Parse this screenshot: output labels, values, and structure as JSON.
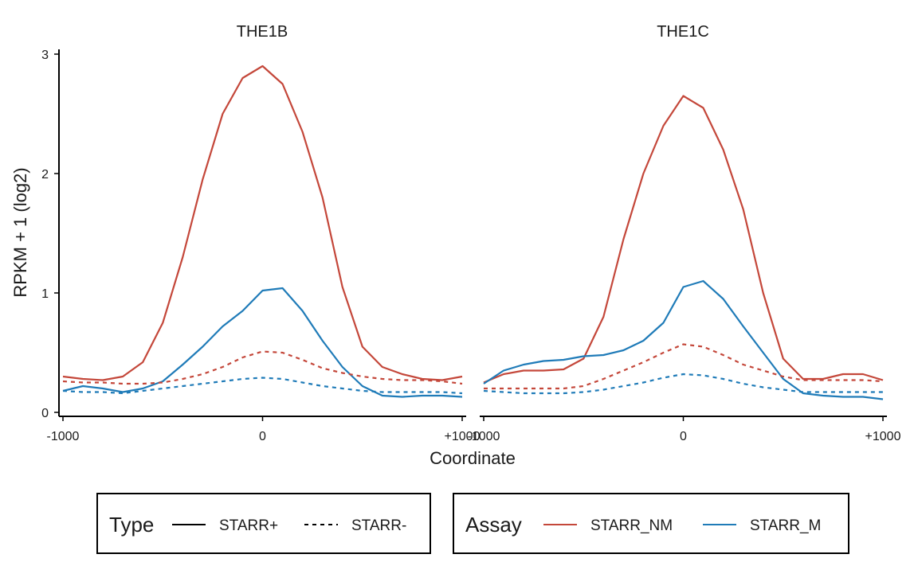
{
  "chart_data": {
    "type": "line",
    "xlabel": "Coordinate",
    "ylabel": "RPKM + 1 (log2)",
    "xlim": [
      -1000,
      1000
    ],
    "ylim": [
      0,
      3
    ],
    "x_ticks": [
      -1000,
      0,
      1000
    ],
    "x_tick_labels": [
      "-1000",
      "0",
      "+1000"
    ],
    "y_ticks": [
      0,
      1,
      2,
      3
    ],
    "y_tick_labels": [
      "0",
      "1",
      "2",
      "3"
    ],
    "grid": false,
    "colors": {
      "STARR_NM": "#C4473A",
      "STARR_M": "#1F7BB8"
    },
    "panels": [
      {
        "title": "THE1B",
        "series": [
          {
            "assay": "STARR_NM",
            "type": "STARR+",
            "x": [
              -1000,
              -900,
              -800,
              -700,
              -600,
              -500,
              -400,
              -300,
              -200,
              -100,
              0,
              100,
              200,
              300,
              400,
              500,
              600,
              700,
              800,
              900,
              1000
            ],
            "y": [
              0.3,
              0.28,
              0.27,
              0.3,
              0.42,
              0.75,
              1.3,
              1.95,
              2.5,
              2.8,
              2.9,
              2.75,
              2.35,
              1.8,
              1.05,
              0.55,
              0.38,
              0.32,
              0.28,
              0.27,
              0.3
            ]
          },
          {
            "assay": "STARR_M",
            "type": "STARR+",
            "x": [
              -1000,
              -900,
              -800,
              -700,
              -600,
              -500,
              -400,
              -300,
              -200,
              -100,
              0,
              100,
              200,
              300,
              400,
              500,
              600,
              700,
              800,
              900,
              1000
            ],
            "y": [
              0.18,
              0.22,
              0.2,
              0.17,
              0.2,
              0.26,
              0.4,
              0.55,
              0.72,
              0.85,
              1.02,
              1.04,
              0.85,
              0.6,
              0.38,
              0.22,
              0.14,
              0.13,
              0.14,
              0.14,
              0.13
            ]
          },
          {
            "assay": "STARR_NM",
            "type": "STARR-",
            "x": [
              -1000,
              -900,
              -800,
              -700,
              -600,
              -500,
              -400,
              -300,
              -200,
              -100,
              0,
              100,
              200,
              300,
              400,
              500,
              600,
              700,
              800,
              900,
              1000
            ],
            "y": [
              0.26,
              0.25,
              0.25,
              0.24,
              0.24,
              0.25,
              0.28,
              0.32,
              0.38,
              0.46,
              0.51,
              0.5,
              0.44,
              0.37,
              0.33,
              0.3,
              0.28,
              0.27,
              0.27,
              0.26,
              0.24
            ]
          },
          {
            "assay": "STARR_M",
            "type": "STARR-",
            "x": [
              -1000,
              -900,
              -800,
              -700,
              -600,
              -500,
              -400,
              -300,
              -200,
              -100,
              0,
              100,
              200,
              300,
              400,
              500,
              600,
              700,
              800,
              900,
              1000
            ],
            "y": [
              0.18,
              0.17,
              0.17,
              0.16,
              0.18,
              0.2,
              0.22,
              0.24,
              0.26,
              0.28,
              0.29,
              0.28,
              0.25,
              0.22,
              0.2,
              0.18,
              0.17,
              0.17,
              0.17,
              0.17,
              0.16
            ]
          }
        ]
      },
      {
        "title": "THE1C",
        "series": [
          {
            "assay": "STARR_NM",
            "type": "STARR+",
            "x": [
              -1000,
              -900,
              -800,
              -700,
              -600,
              -500,
              -400,
              -300,
              -200,
              -100,
              0,
              100,
              200,
              300,
              400,
              500,
              600,
              700,
              800,
              900,
              1000
            ],
            "y": [
              0.25,
              0.32,
              0.35,
              0.35,
              0.36,
              0.45,
              0.8,
              1.45,
              2.0,
              2.4,
              2.65,
              2.55,
              2.2,
              1.7,
              1.0,
              0.45,
              0.28,
              0.28,
              0.32,
              0.32,
              0.27
            ]
          },
          {
            "assay": "STARR_M",
            "type": "STARR+",
            "x": [
              -1000,
              -900,
              -800,
              -700,
              -600,
              -500,
              -400,
              -300,
              -200,
              -100,
              0,
              100,
              200,
              300,
              400,
              500,
              600,
              700,
              800,
              900,
              1000
            ],
            "y": [
              0.24,
              0.35,
              0.4,
              0.43,
              0.44,
              0.47,
              0.48,
              0.52,
              0.6,
              0.75,
              1.05,
              1.1,
              0.95,
              0.72,
              0.5,
              0.28,
              0.16,
              0.14,
              0.13,
              0.13,
              0.11
            ]
          },
          {
            "assay": "STARR_NM",
            "type": "STARR-",
            "x": [
              -1000,
              -900,
              -800,
              -700,
              -600,
              -500,
              -400,
              -300,
              -200,
              -100,
              0,
              100,
              200,
              300,
              400,
              500,
              600,
              700,
              800,
              900,
              1000
            ],
            "y": [
              0.2,
              0.2,
              0.2,
              0.2,
              0.2,
              0.22,
              0.28,
              0.35,
              0.42,
              0.5,
              0.57,
              0.55,
              0.48,
              0.4,
              0.35,
              0.3,
              0.27,
              0.27,
              0.27,
              0.27,
              0.26
            ]
          },
          {
            "assay": "STARR_M",
            "type": "STARR-",
            "x": [
              -1000,
              -900,
              -800,
              -700,
              -600,
              -500,
              -400,
              -300,
              -200,
              -100,
              0,
              100,
              200,
              300,
              400,
              500,
              600,
              700,
              800,
              900,
              1000
            ],
            "y": [
              0.18,
              0.17,
              0.16,
              0.16,
              0.16,
              0.17,
              0.19,
              0.22,
              0.25,
              0.29,
              0.32,
              0.31,
              0.28,
              0.24,
              0.21,
              0.19,
              0.17,
              0.17,
              0.17,
              0.17,
              0.17
            ]
          }
        ]
      }
    ],
    "legends": [
      {
        "title": "Type",
        "entries": [
          {
            "label": "STARR+",
            "dash": "solid"
          },
          {
            "label": "STARR-",
            "dash": "dashed"
          }
        ]
      },
      {
        "title": "Assay",
        "entries": [
          {
            "label": "STARR_NM",
            "color": "#C4473A"
          },
          {
            "label": "STARR_M",
            "color": "#1F7BB8"
          }
        ]
      }
    ],
    "legend_position": "bottom"
  }
}
